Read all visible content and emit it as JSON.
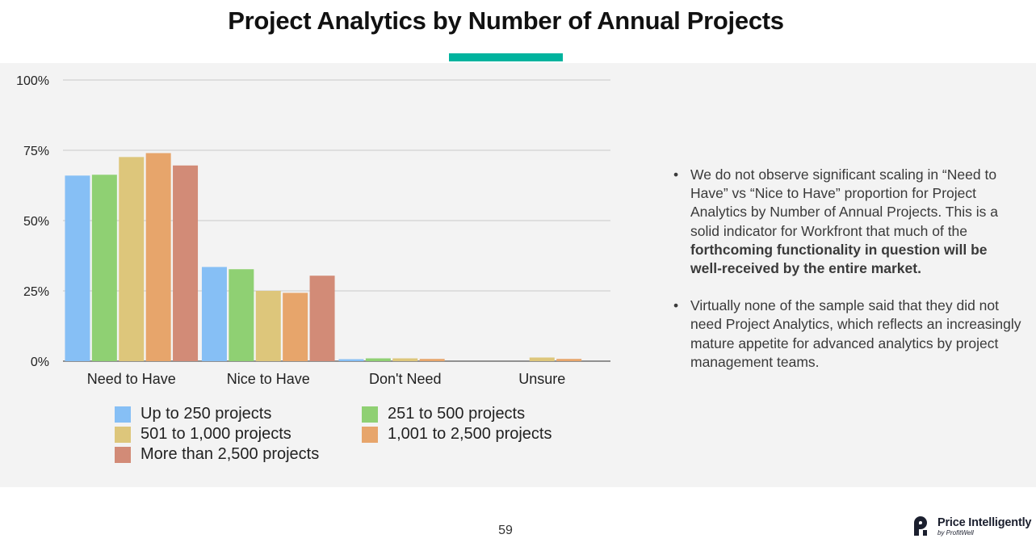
{
  "page_title": "Project Analytics by Number of Annual Projects",
  "page_number": "59",
  "brand": {
    "name": "Price Intelligently",
    "tagline": "by ProfitWell",
    "accent_color": "#00b39e"
  },
  "notes": [
    {
      "plain": "We do not observe significant scaling in “Need to Have” vs “Nice to Have” proportion for Project Analytics by Number of Annual Projects. This is a solid indicator for Workfront that much of the ",
      "bold": "forthcoming functionality in question will be well-received by the entire market."
    },
    {
      "plain": "Virtually none of the sample said that they did not need Project Analytics, which reflects an increasingly mature appetite for advanced analytics by project management teams."
    }
  ],
  "chart_data": {
    "type": "bar",
    "title": "Project Analytics by Number of Annual Projects",
    "categories": [
      "Need to Have",
      "Nice to Have",
      "Don't Need",
      "Unsure"
    ],
    "y_ticks": [
      "0%",
      "25%",
      "50%",
      "75%",
      "100%"
    ],
    "ylim": [
      0,
      100
    ],
    "xlabel": "",
    "ylabel": "",
    "grid": true,
    "legend_position": "bottom",
    "series": [
      {
        "name": "Up to 250 projects",
        "color": "#86bff5",
        "values": [
          66,
          33.5,
          0.7,
          0
        ]
      },
      {
        "name": "251 to 500 projects",
        "color": "#8fd073",
        "values": [
          66.3,
          32.7,
          1,
          0
        ]
      },
      {
        "name": "501 to 1,000 projects",
        "color": "#ddc67b",
        "values": [
          72.6,
          25,
          1,
          1.3
        ]
      },
      {
        "name": "1,001 to 2,500 projects",
        "color": "#e7a56b",
        "values": [
          74,
          24.3,
          0.8,
          0.8
        ]
      },
      {
        "name": "More than 2,500 projects",
        "color": "#d28b77",
        "values": [
          69.6,
          30.4,
          0,
          0
        ]
      }
    ]
  }
}
